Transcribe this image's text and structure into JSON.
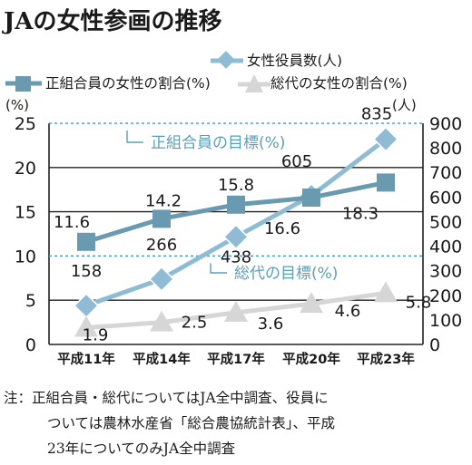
{
  "title": "JAの女性参画の推移",
  "chart_data": {
    "type": "line",
    "categories": [
      "平成11年",
      "平成14年",
      "平成17年",
      "平成20年",
      "平成23年"
    ],
    "left_axis": {
      "unit": "(%)",
      "range": [
        0,
        25
      ],
      "ticks": [
        0,
        5,
        10,
        15,
        20,
        25
      ]
    },
    "right_axis": {
      "unit": "(人)",
      "range": [
        0,
        900
      ],
      "ticks": [
        0,
        100,
        200,
        300,
        400,
        500,
        600,
        700,
        800,
        900
      ]
    },
    "series": [
      {
        "name": "女性役員数(人)",
        "axis": "right",
        "color": "#8fbcd4",
        "marker": "diamond",
        "values": [
          158,
          266,
          438,
          605,
          835
        ],
        "labels": [
          "158",
          "266",
          "438",
          "605",
          "835"
        ]
      },
      {
        "name": "正組合員の女性の割合(%)",
        "axis": "left",
        "color": "#6a9ab0",
        "marker": "square",
        "values": [
          11.6,
          14.2,
          15.8,
          16.6,
          18.3
        ],
        "labels": [
          "11.6",
          "14.2",
          "15.8",
          "16.6",
          "18.3"
        ]
      },
      {
        "name": "総代の女性の割合(%)",
        "axis": "left",
        "color": "#d6d6d6",
        "marker": "triangle",
        "values": [
          1.9,
          2.5,
          3.6,
          4.6,
          5.8
        ],
        "labels": [
          "1.9",
          "2.5",
          "3.6",
          "4.6",
          "5.8"
        ]
      }
    ],
    "targets": [
      {
        "label": "正組合員の目標(%)",
        "value": 25,
        "color": "#5a9fb8"
      },
      {
        "label": "総代の目標(%)",
        "value": 10,
        "color": "#5a9fb8"
      }
    ],
    "grid": true,
    "legend": "top"
  },
  "note": {
    "lines": [
      "注：正組合員・総代についてはJA全中調査、役員に",
      "ついては農林水産省「総合農協統計表」、平成",
      "23年についてのみJA全中調査"
    ]
  }
}
